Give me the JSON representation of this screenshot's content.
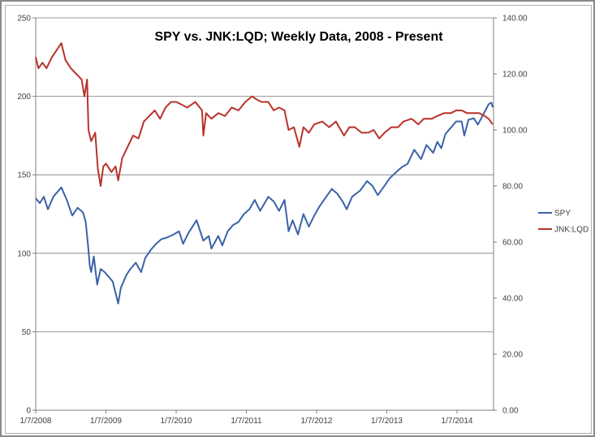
{
  "chart_data": {
    "type": "line",
    "title": "SPY vs. JNK:LQD; Weekly Data, 2008 - Present",
    "x_ticks": [
      "1/7/2008",
      "1/7/2009",
      "1/7/2010",
      "1/7/2011",
      "1/7/2012",
      "1/7/2013",
      "1/7/2014"
    ],
    "y_left": {
      "min": 0,
      "max": 250,
      "ticks": [
        "0",
        "50",
        "100",
        "150",
        "200",
        "250"
      ]
    },
    "y_right": {
      "min": 0,
      "max": 140,
      "ticks": [
        "0.00",
        "20.00",
        "40.00",
        "60.00",
        "80.00",
        "100.00",
        "120.00",
        "140.00"
      ]
    },
    "grid": "horizontal",
    "legend_position": "right",
    "x_start": "2008-01-07",
    "x_end": "2014-06-30",
    "series": [
      {
        "name": "SPY",
        "axis": "left",
        "color": "#3a62a8",
        "points": [
          [
            "2008-01-07",
            135
          ],
          [
            "2008-01-28",
            132
          ],
          [
            "2008-02-18",
            136
          ],
          [
            "2008-03-10",
            128
          ],
          [
            "2008-04-07",
            136
          ],
          [
            "2008-05-19",
            142
          ],
          [
            "2008-06-16",
            134
          ],
          [
            "2008-07-14",
            124
          ],
          [
            "2008-08-11",
            129
          ],
          [
            "2008-09-08",
            126
          ],
          [
            "2008-09-22",
            120
          ],
          [
            "2008-10-06",
            102
          ],
          [
            "2008-10-13",
            92
          ],
          [
            "2008-10-20",
            88
          ],
          [
            "2008-11-03",
            98
          ],
          [
            "2008-11-20",
            80
          ],
          [
            "2008-12-08",
            90
          ],
          [
            "2008-12-29",
            88
          ],
          [
            "2009-01-12",
            86
          ],
          [
            "2009-02-09",
            82
          ],
          [
            "2009-03-09",
            68
          ],
          [
            "2009-03-23",
            78
          ],
          [
            "2009-04-20",
            86
          ],
          [
            "2009-05-11",
            90
          ],
          [
            "2009-06-08",
            94
          ],
          [
            "2009-07-06",
            88
          ],
          [
            "2009-07-27",
            97
          ],
          [
            "2009-08-24",
            102
          ],
          [
            "2009-09-21",
            106
          ],
          [
            "2009-10-19",
            109
          ],
          [
            "2009-11-16",
            110
          ],
          [
            "2009-12-21",
            112
          ],
          [
            "2010-01-18",
            114
          ],
          [
            "2010-02-08",
            106
          ],
          [
            "2010-03-08",
            113
          ],
          [
            "2010-04-19",
            121
          ],
          [
            "2010-05-24",
            108
          ],
          [
            "2010-06-21",
            111
          ],
          [
            "2010-07-05",
            103
          ],
          [
            "2010-08-09",
            111
          ],
          [
            "2010-08-30",
            105
          ],
          [
            "2010-09-27",
            114
          ],
          [
            "2010-10-25",
            118
          ],
          [
            "2010-11-22",
            120
          ],
          [
            "2010-12-20",
            125
          ],
          [
            "2011-01-17",
            128
          ],
          [
            "2011-02-14",
            134
          ],
          [
            "2011-03-14",
            127
          ],
          [
            "2011-04-25",
            136
          ],
          [
            "2011-05-23",
            133
          ],
          [
            "2011-06-20",
            127
          ],
          [
            "2011-07-18",
            134
          ],
          [
            "2011-08-08",
            114
          ],
          [
            "2011-08-29",
            121
          ],
          [
            "2011-09-26",
            112
          ],
          [
            "2011-10-24",
            125
          ],
          [
            "2011-11-21",
            117
          ],
          [
            "2011-12-19",
            124
          ],
          [
            "2012-01-16",
            130
          ],
          [
            "2012-02-13",
            135
          ],
          [
            "2012-03-19",
            141
          ],
          [
            "2012-04-16",
            138
          ],
          [
            "2012-05-14",
            133
          ],
          [
            "2012-06-04",
            128
          ],
          [
            "2012-07-02",
            136
          ],
          [
            "2012-08-13",
            140
          ],
          [
            "2012-09-17",
            146
          ],
          [
            "2012-10-15",
            143
          ],
          [
            "2012-11-12",
            137
          ],
          [
            "2012-12-17",
            143
          ],
          [
            "2013-01-14",
            148
          ],
          [
            "2013-02-18",
            152
          ],
          [
            "2013-03-18",
            155
          ],
          [
            "2013-04-15",
            157
          ],
          [
            "2013-05-20",
            166
          ],
          [
            "2013-06-24",
            160
          ],
          [
            "2013-07-22",
            169
          ],
          [
            "2013-08-26",
            164
          ],
          [
            "2013-09-16",
            171
          ],
          [
            "2013-10-07",
            167
          ],
          [
            "2013-10-28",
            176
          ],
          [
            "2013-11-25",
            180
          ],
          [
            "2013-12-23",
            184
          ],
          [
            "2014-01-20",
            184
          ],
          [
            "2014-02-03",
            175
          ],
          [
            "2014-02-24",
            185
          ],
          [
            "2014-03-24",
            186
          ],
          [
            "2014-04-14",
            182
          ],
          [
            "2014-05-19",
            190
          ],
          [
            "2014-06-09",
            195
          ],
          [
            "2014-06-23",
            196
          ],
          [
            "2014-06-30",
            193
          ]
        ]
      },
      {
        "name": "JNK:LQD",
        "axis": "right",
        "color": "#b8322a",
        "points": [
          [
            "2008-01-07",
            126
          ],
          [
            "2008-01-21",
            122
          ],
          [
            "2008-02-11",
            124
          ],
          [
            "2008-03-03",
            122
          ],
          [
            "2008-03-31",
            126
          ],
          [
            "2008-05-19",
            131
          ],
          [
            "2008-06-09",
            125
          ],
          [
            "2008-07-07",
            122
          ],
          [
            "2008-08-04",
            120
          ],
          [
            "2008-09-01",
            118
          ],
          [
            "2008-09-15",
            112
          ],
          [
            "2008-09-29",
            118
          ],
          [
            "2008-10-06",
            100
          ],
          [
            "2008-10-20",
            96
          ],
          [
            "2008-11-10",
            99
          ],
          [
            "2008-11-24",
            86
          ],
          [
            "2008-12-08",
            80
          ],
          [
            "2008-12-22",
            87
          ],
          [
            "2009-01-05",
            88
          ],
          [
            "2009-02-02",
            85
          ],
          [
            "2009-02-23",
            87
          ],
          [
            "2009-03-09",
            82
          ],
          [
            "2009-03-30",
            90
          ],
          [
            "2009-04-27",
            94
          ],
          [
            "2009-05-25",
            98
          ],
          [
            "2009-06-22",
            97
          ],
          [
            "2009-07-20",
            103
          ],
          [
            "2009-08-17",
            105
          ],
          [
            "2009-09-14",
            107
          ],
          [
            "2009-10-12",
            104
          ],
          [
            "2009-11-09",
            108
          ],
          [
            "2009-12-07",
            110
          ],
          [
            "2010-01-04",
            110
          ],
          [
            "2010-02-01",
            109
          ],
          [
            "2010-03-01",
            108
          ],
          [
            "2010-04-12",
            110
          ],
          [
            "2010-05-17",
            107
          ],
          [
            "2010-05-24",
            98
          ],
          [
            "2010-06-07",
            106
          ],
          [
            "2010-07-05",
            104
          ],
          [
            "2010-08-09",
            106
          ],
          [
            "2010-09-13",
            105
          ],
          [
            "2010-10-18",
            108
          ],
          [
            "2010-11-22",
            107
          ],
          [
            "2010-12-27",
            110
          ],
          [
            "2011-01-31",
            112
          ],
          [
            "2011-02-21",
            111
          ],
          [
            "2011-03-21",
            110
          ],
          [
            "2011-04-25",
            110
          ],
          [
            "2011-05-23",
            107
          ],
          [
            "2011-06-20",
            108
          ],
          [
            "2011-07-18",
            107
          ],
          [
            "2011-08-08",
            100
          ],
          [
            "2011-09-05",
            101
          ],
          [
            "2011-10-03",
            94
          ],
          [
            "2011-10-24",
            101
          ],
          [
            "2011-11-21",
            99
          ],
          [
            "2011-12-19",
            102
          ],
          [
            "2012-01-30",
            103
          ],
          [
            "2012-03-05",
            101
          ],
          [
            "2012-04-09",
            103
          ],
          [
            "2012-05-21",
            98
          ],
          [
            "2012-06-18",
            101
          ],
          [
            "2012-07-16",
            101
          ],
          [
            "2012-08-20",
            99
          ],
          [
            "2012-09-24",
            99
          ],
          [
            "2012-10-22",
            100
          ],
          [
            "2012-11-19",
            97
          ],
          [
            "2012-12-17",
            99
          ],
          [
            "2013-01-21",
            101
          ],
          [
            "2013-02-25",
            101
          ],
          [
            "2013-03-25",
            103
          ],
          [
            "2013-05-06",
            104
          ],
          [
            "2013-06-10",
            102
          ],
          [
            "2013-07-08",
            104
          ],
          [
            "2013-08-19",
            104
          ],
          [
            "2013-09-16",
            105
          ],
          [
            "2013-10-21",
            106
          ],
          [
            "2013-11-25",
            106
          ],
          [
            "2013-12-23",
            107
          ],
          [
            "2014-01-20",
            107
          ],
          [
            "2014-02-17",
            106
          ],
          [
            "2014-03-17",
            106
          ],
          [
            "2014-04-21",
            106
          ],
          [
            "2014-05-19",
            105
          ],
          [
            "2014-06-09",
            104
          ],
          [
            "2014-06-30",
            102
          ]
        ]
      }
    ]
  }
}
